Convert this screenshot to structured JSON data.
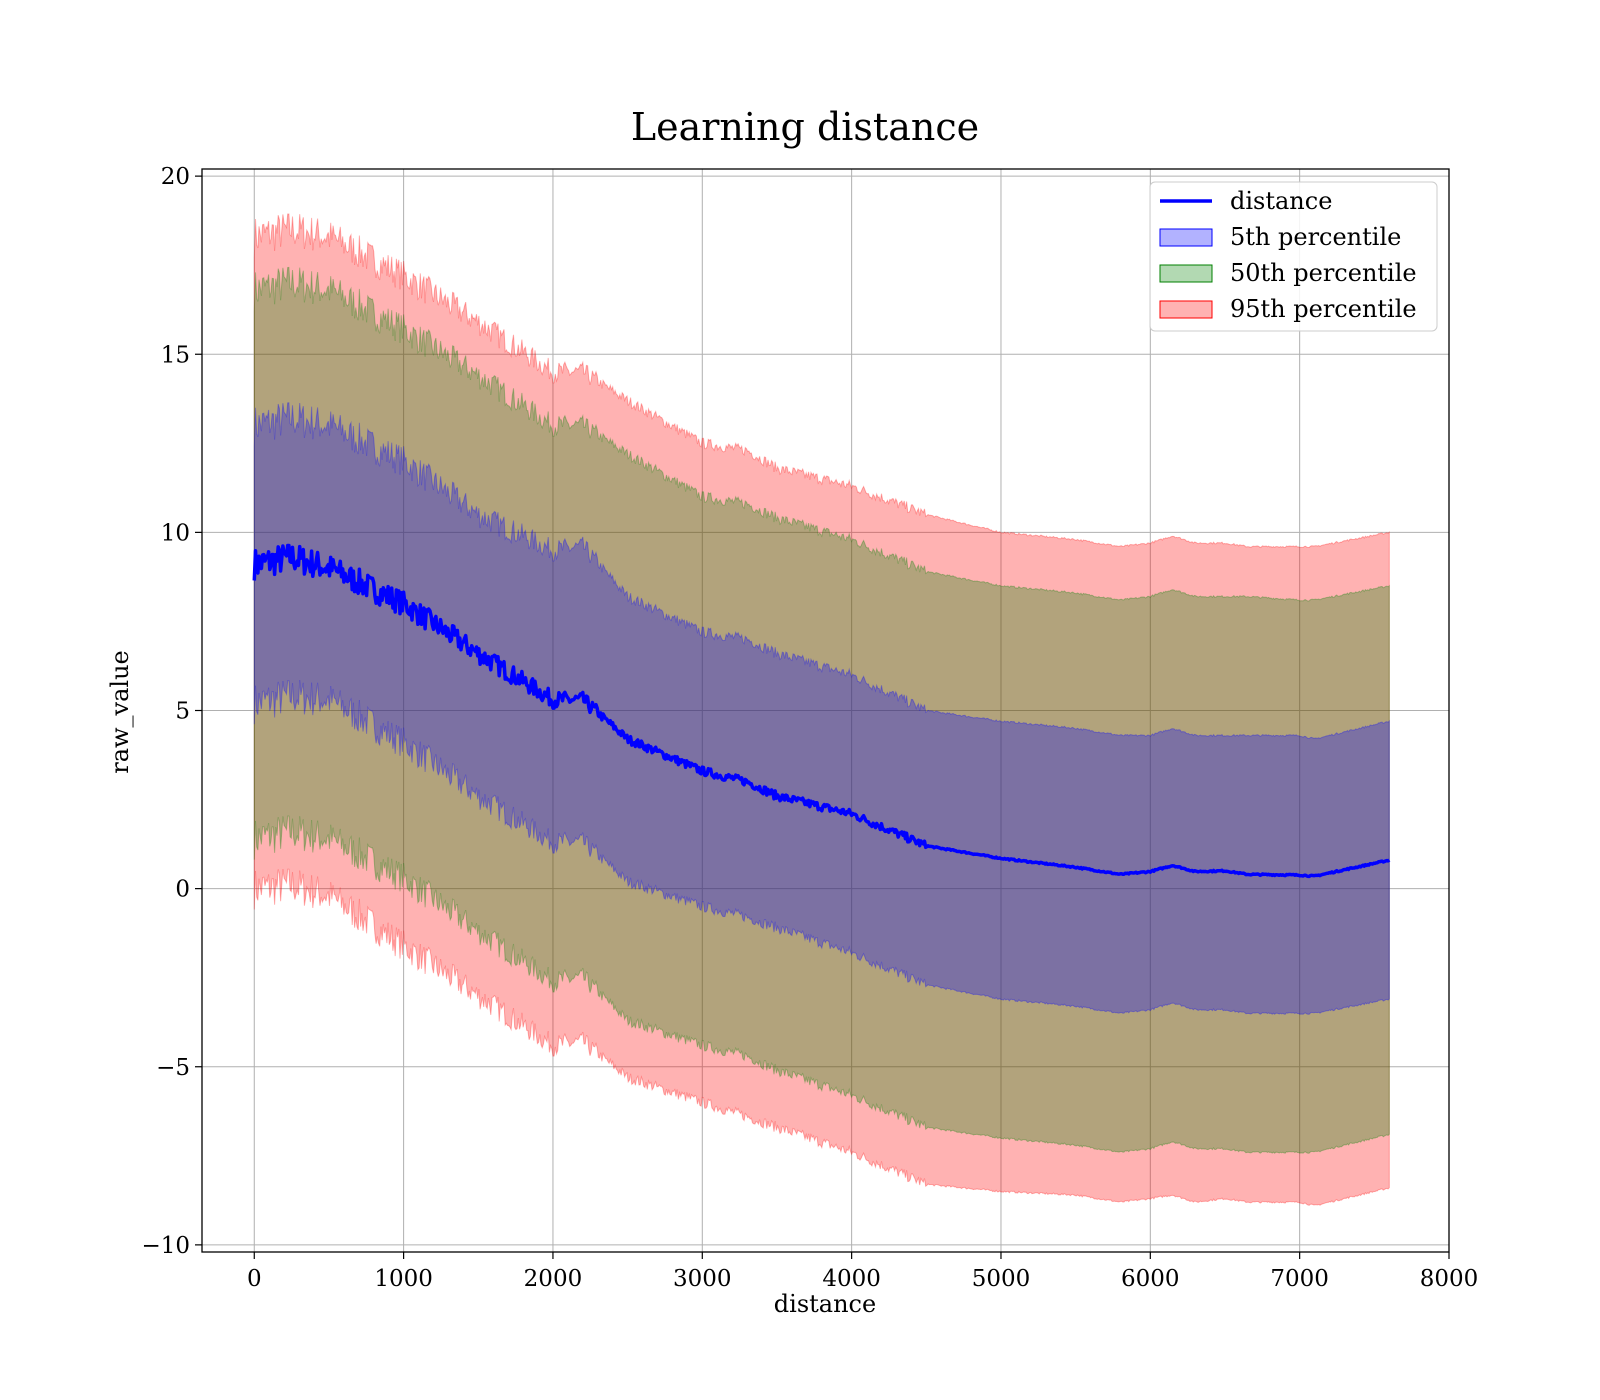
{
  "chart_data": {
    "type": "area",
    "title": "Learning distance",
    "xlabel": "distance",
    "ylabel": "raw_value",
    "xlim": [
      -350,
      8000
    ],
    "ylim": [
      -10.2,
      20.2
    ],
    "grid": true,
    "legend_position": "top-right",
    "x_ticks": [
      0,
      1000,
      2000,
      3000,
      4000,
      5000,
      6000,
      7000,
      8000
    ],
    "x_tick_labels": [
      "0",
      "1000",
      "2000",
      "3000",
      "4000",
      "5000",
      "6000",
      "7000",
      "8000"
    ],
    "y_ticks": [
      -10,
      -5,
      0,
      5,
      10,
      15,
      20
    ],
    "y_tick_labels": [
      "−10",
      "−5",
      "0",
      "5",
      "10",
      "15",
      "20"
    ],
    "x": [
      0,
      250,
      500,
      1000,
      1500,
      2000,
      2200,
      2500,
      3000,
      3300,
      3500,
      4000,
      4500,
      5000,
      5500,
      5800,
      6000,
      6150,
      6300,
      6500,
      6650,
      7000,
      7100,
      7600
    ],
    "series": [
      {
        "name": "distance",
        "kind": "line",
        "color": "#0000ff",
        "values": [
          9.1,
          9.3,
          9.0,
          8.0,
          6.6,
          5.3,
          5.3,
          4.2,
          3.3,
          3.0,
          2.6,
          2.1,
          1.2,
          0.85,
          0.6,
          0.4,
          0.48,
          0.65,
          0.48,
          0.5,
          0.4,
          0.38,
          0.35,
          0.8
        ]
      },
      {
        "name": "5th percentile",
        "kind": "band",
        "color": "#0000ff",
        "lower": [
          5.2,
          5.4,
          5.3,
          4.1,
          2.6,
          1.3,
          1.3,
          0.2,
          -0.5,
          -0.8,
          -1.1,
          -1.8,
          -2.7,
          -3.1,
          -3.3,
          -3.5,
          -3.4,
          -3.2,
          -3.4,
          -3.4,
          -3.5,
          -3.5,
          -3.5,
          -3.1
        ],
        "upper": [
          13.0,
          13.2,
          13.0,
          12.0,
          10.5,
          9.5,
          9.6,
          8.2,
          7.2,
          7.0,
          6.6,
          6.0,
          5.0,
          4.7,
          4.5,
          4.3,
          4.3,
          4.5,
          4.3,
          4.3,
          4.3,
          4.3,
          4.2,
          4.7
        ]
      },
      {
        "name": "50th percentile",
        "kind": "band",
        "color": "#008000",
        "lower": [
          1.4,
          1.6,
          1.4,
          0.3,
          -1.2,
          -2.6,
          -2.5,
          -3.7,
          -4.4,
          -4.7,
          -5.1,
          -5.8,
          -6.7,
          -7.0,
          -7.2,
          -7.4,
          -7.3,
          -7.1,
          -7.3,
          -7.3,
          -7.4,
          -7.4,
          -7.4,
          -6.9
        ],
        "upper": [
          16.8,
          17.0,
          16.8,
          15.7,
          14.4,
          13.0,
          13.0,
          12.2,
          11.0,
          10.8,
          10.4,
          9.8,
          8.9,
          8.5,
          8.3,
          8.1,
          8.2,
          8.4,
          8.2,
          8.2,
          8.2,
          8.1,
          8.1,
          8.5
        ]
      },
      {
        "name": "95th percentile",
        "kind": "band",
        "color": "#ff0000",
        "lower": [
          0.0,
          0.1,
          -0.2,
          -1.6,
          -3.0,
          -4.4,
          -4.3,
          -5.3,
          -6.0,
          -6.4,
          -6.7,
          -7.4,
          -8.3,
          -8.5,
          -8.6,
          -8.8,
          -8.7,
          -8.6,
          -8.8,
          -8.7,
          -8.8,
          -8.8,
          -8.9,
          -8.4
        ],
        "upper": [
          18.3,
          18.5,
          18.3,
          17.2,
          15.9,
          14.5,
          14.5,
          13.7,
          12.5,
          12.3,
          11.8,
          11.3,
          10.5,
          10.0,
          9.8,
          9.6,
          9.7,
          9.9,
          9.7,
          9.7,
          9.6,
          9.6,
          9.6,
          10.0
        ]
      }
    ]
  }
}
